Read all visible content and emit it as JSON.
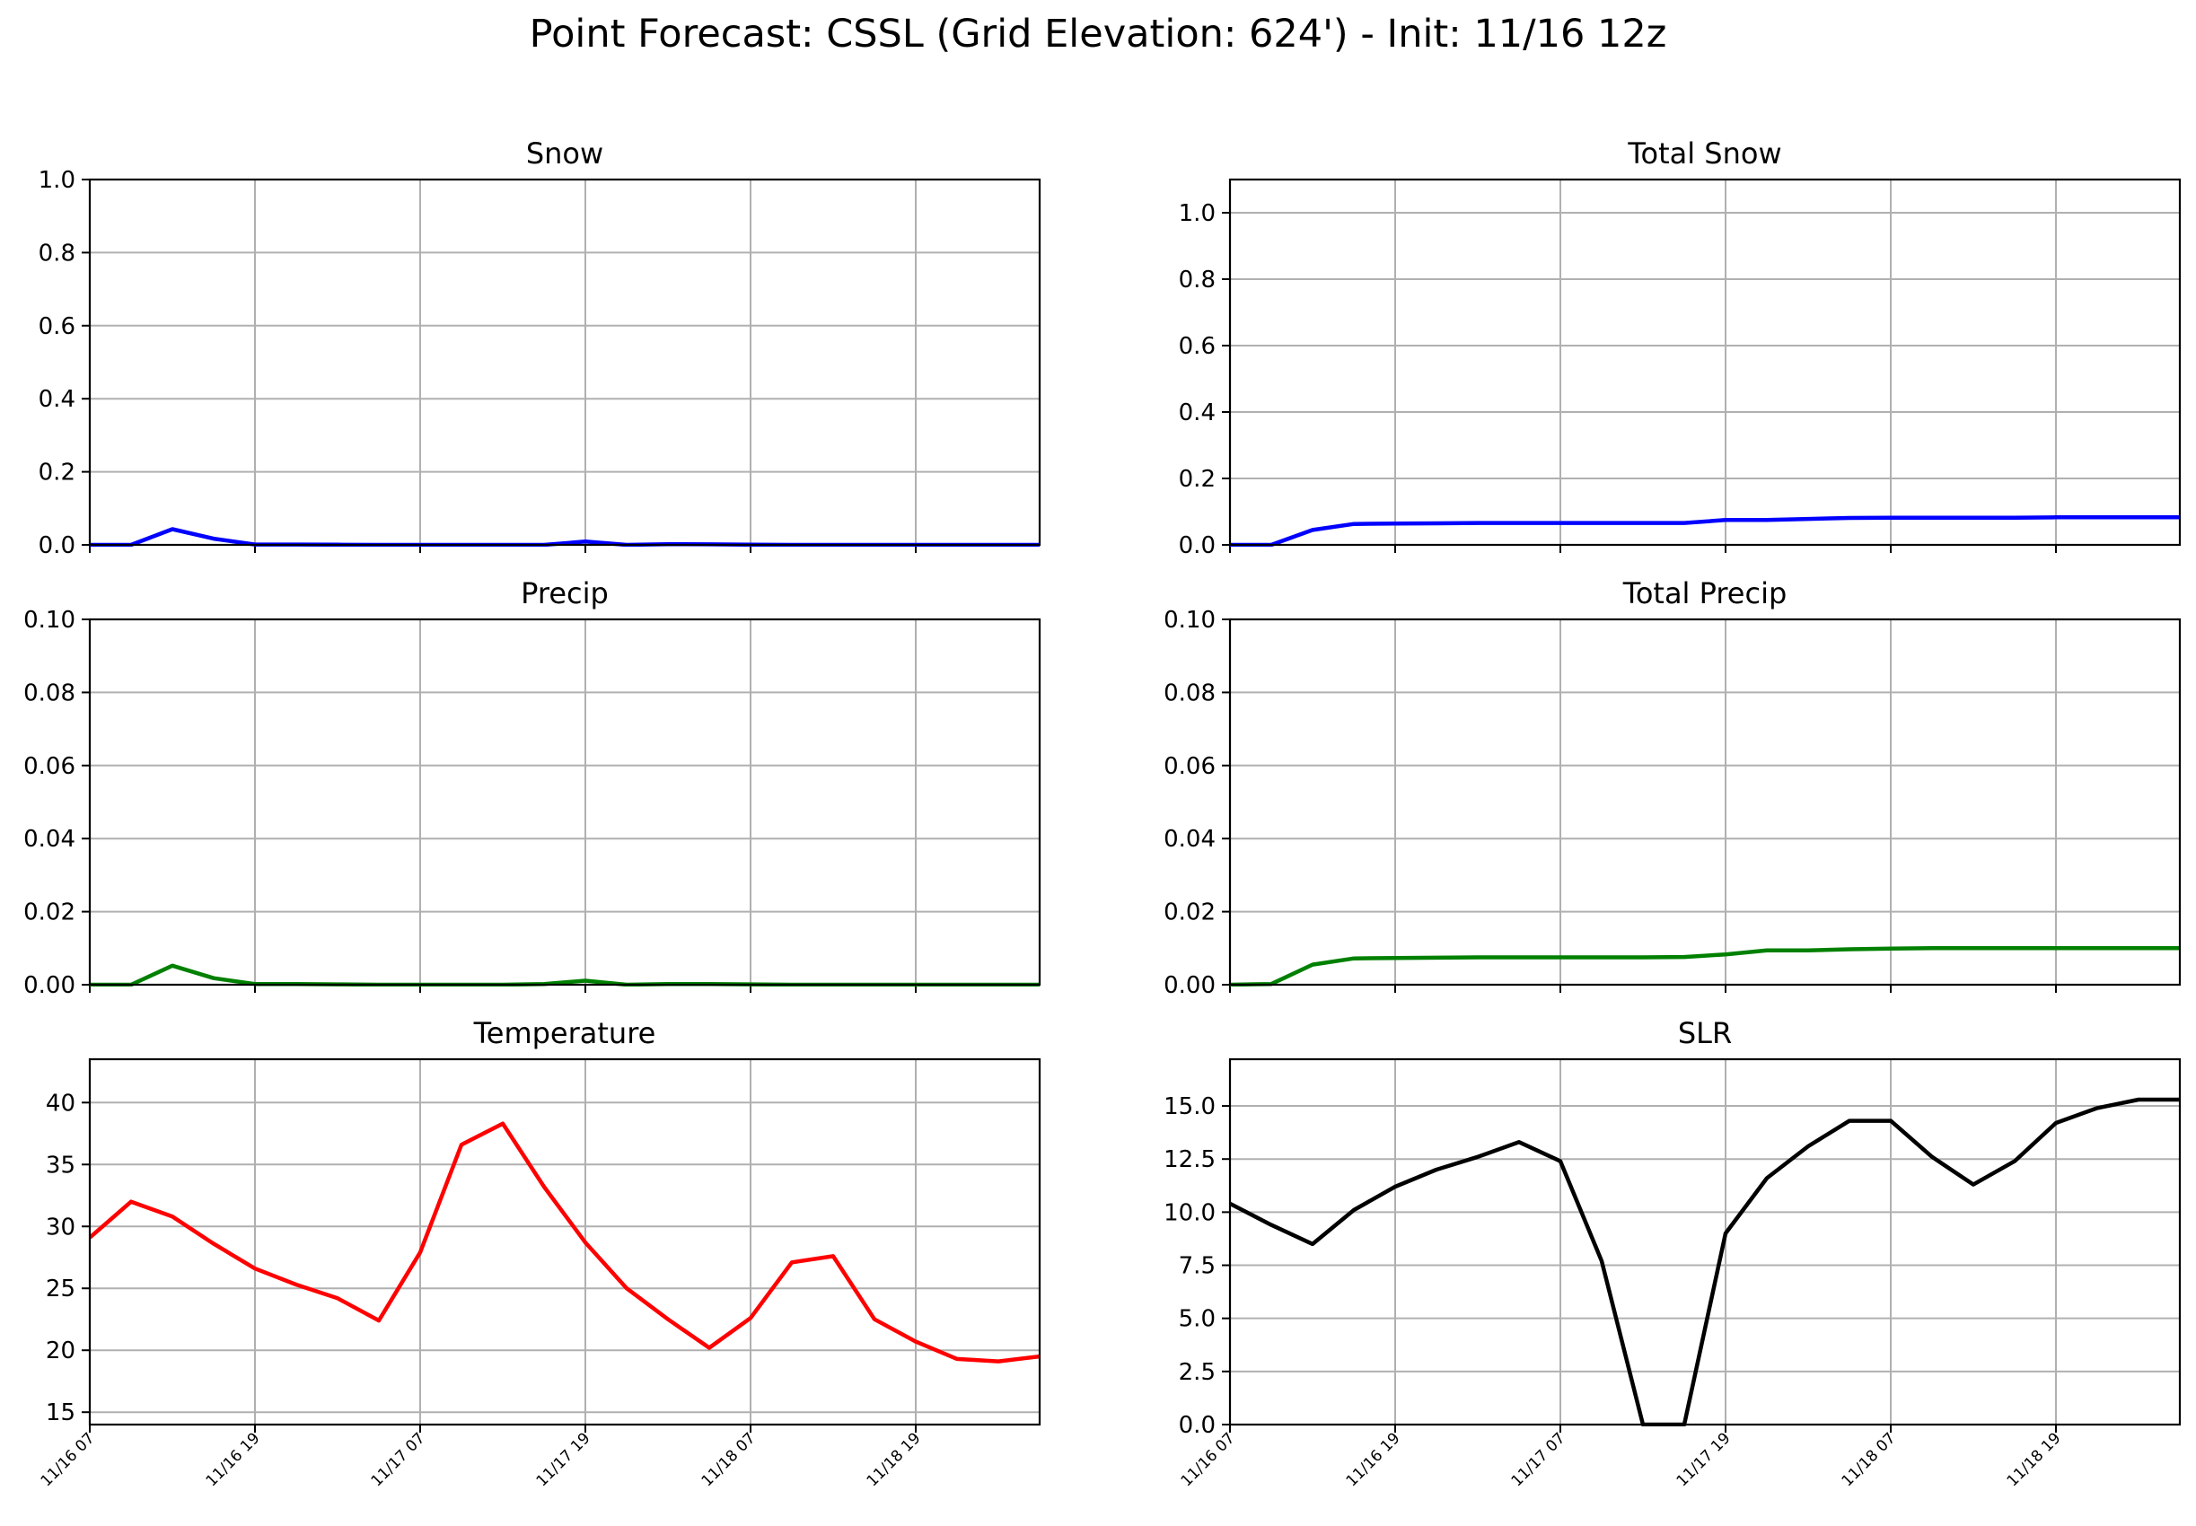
{
  "figure_title": "Point Forecast: CSSL (Grid Elevation: 624') - Init: 11/16 12z",
  "chart_data": [
    {
      "type": "line",
      "title": "Snow",
      "color": "#0000ff",
      "ylim": [
        0,
        1.0
      ],
      "yticks": [
        "0.0",
        "0.2",
        "0.4",
        "0.6",
        "0.8",
        "1.0"
      ],
      "ytick_values": [
        0,
        0.2,
        0.4,
        0.6,
        0.8,
        1.0
      ],
      "xlim": [
        0,
        69
      ],
      "xticks": [
        "11/16 07",
        "11/16 19",
        "11/17 07",
        "11/17 19",
        "11/18 07",
        "11/18 19"
      ],
      "xtick_positions": [
        0,
        12,
        24,
        36,
        48,
        60
      ],
      "x": [
        0,
        3,
        6,
        9,
        12,
        15,
        18,
        21,
        24,
        27,
        30,
        33,
        36,
        39,
        42,
        45,
        48,
        51,
        54,
        57,
        60,
        63,
        66,
        69
      ],
      "y": [
        0,
        0,
        0.043,
        0.017,
        0.001,
        0.001,
        0.0005,
        0,
        0,
        0,
        0,
        0,
        0.009,
        0,
        0.002,
        0.0015,
        0.0005,
        0,
        0,
        0,
        0,
        0,
        0,
        0
      ]
    },
    {
      "type": "line",
      "title": "Total Snow",
      "color": "#0000ff",
      "ylim": [
        0,
        1.1
      ],
      "yticks": [
        "0.0",
        "0.2",
        "0.4",
        "0.6",
        "0.8",
        "1.0"
      ],
      "ytick_values": [
        0,
        0.2,
        0.4,
        0.6,
        0.8,
        1.0
      ],
      "xlim": [
        0,
        69
      ],
      "xticks": [
        "11/16 07",
        "11/16 19",
        "11/17 07",
        "11/17 19",
        "11/18 07",
        "11/18 19"
      ],
      "xtick_positions": [
        0,
        12,
        24,
        36,
        48,
        60
      ],
      "x": [
        0,
        3,
        6,
        9,
        12,
        15,
        18,
        21,
        24,
        27,
        30,
        33,
        36,
        39,
        42,
        45,
        48,
        51,
        54,
        57,
        60,
        63,
        66,
        69
      ],
      "y": [
        0,
        0,
        0.045,
        0.063,
        0.064,
        0.065,
        0.066,
        0.066,
        0.066,
        0.066,
        0.066,
        0.066,
        0.075,
        0.075,
        0.078,
        0.081,
        0.082,
        0.082,
        0.082,
        0.082,
        0.083,
        0.083,
        0.083,
        0.083
      ]
    },
    {
      "type": "line",
      "title": "Precip",
      "color": "#008000",
      "ylim": [
        0,
        0.1
      ],
      "yticks": [
        "0.00",
        "0.02",
        "0.04",
        "0.06",
        "0.08",
        "0.10"
      ],
      "ytick_values": [
        0,
        0.02,
        0.04,
        0.06,
        0.08,
        0.1
      ],
      "xlim": [
        0,
        69
      ],
      "xticks": [
        "11/16 07",
        "11/16 19",
        "11/17 07",
        "11/17 19",
        "11/18 07",
        "11/18 19"
      ],
      "xtick_positions": [
        0,
        12,
        24,
        36,
        48,
        60
      ],
      "x": [
        0,
        3,
        6,
        9,
        12,
        15,
        18,
        21,
        24,
        27,
        30,
        33,
        36,
        39,
        42,
        45,
        48,
        51,
        54,
        57,
        60,
        63,
        66,
        69
      ],
      "y": [
        0,
        0,
        0.0052,
        0.0018,
        0.0002,
        0.0002,
        0.0001,
        0,
        0,
        0,
        0,
        0.0002,
        0.0011,
        0,
        0.0002,
        0.0002,
        0.0001,
        0,
        0,
        0,
        0,
        0,
        0,
        0
      ]
    },
    {
      "type": "line",
      "title": "Total Precip",
      "color": "#008000",
      "ylim": [
        0,
        0.1
      ],
      "yticks": [
        "0.00",
        "0.02",
        "0.04",
        "0.06",
        "0.08",
        "0.10"
      ],
      "ytick_values": [
        0,
        0.02,
        0.04,
        0.06,
        0.08,
        0.1
      ],
      "xlim": [
        0,
        69
      ],
      "xticks": [
        "11/16 07",
        "11/16 19",
        "11/17 07",
        "11/17 19",
        "11/18 07",
        "11/18 19"
      ],
      "xtick_positions": [
        0,
        12,
        24,
        36,
        48,
        60
      ],
      "x": [
        0,
        3,
        6,
        9,
        12,
        15,
        18,
        21,
        24,
        27,
        30,
        33,
        36,
        39,
        42,
        45,
        48,
        51,
        54,
        57,
        60,
        63,
        66,
        69
      ],
      "y": [
        0,
        0.0002,
        0.0055,
        0.0072,
        0.0073,
        0.0074,
        0.0075,
        0.0075,
        0.0075,
        0.0075,
        0.0075,
        0.0076,
        0.0083,
        0.0094,
        0.0094,
        0.0097,
        0.0099,
        0.01,
        0.01,
        0.01,
        0.01,
        0.01,
        0.01,
        0.01
      ]
    },
    {
      "type": "line",
      "title": "Temperature",
      "color": "#ff0000",
      "ylim": [
        14,
        43.5
      ],
      "yticks": [
        "15",
        "20",
        "25",
        "30",
        "35",
        "40"
      ],
      "ytick_values": [
        15,
        20,
        25,
        30,
        35,
        40
      ],
      "xlim": [
        0,
        69
      ],
      "xticks": [
        "11/16 07",
        "11/16 19",
        "11/17 07",
        "11/17 19",
        "11/18 07",
        "11/18 19"
      ],
      "xtick_positions": [
        0,
        12,
        24,
        36,
        48,
        60
      ],
      "x": [
        0,
        3,
        6,
        9,
        12,
        15,
        18,
        21,
        24,
        27,
        30,
        33,
        36,
        39,
        42,
        45,
        48,
        51,
        54,
        57,
        60,
        63,
        66,
        69
      ],
      "y": [
        29.1,
        32.0,
        30.8,
        28.6,
        26.6,
        25.3,
        24.2,
        22.4,
        27.9,
        36.6,
        38.3,
        33.2,
        28.7,
        25.0,
        22.5,
        20.2,
        22.6,
        27.1,
        27.6,
        22.5,
        20.7,
        19.3,
        19.1,
        19.5
      ]
    },
    {
      "type": "line",
      "title": "SLR",
      "color": "#000000",
      "ylim": [
        0,
        17.2
      ],
      "yticks": [
        "0.0",
        "2.5",
        "5.0",
        "7.5",
        "10.0",
        "12.5",
        "15.0"
      ],
      "ytick_values": [
        0,
        2.5,
        5.0,
        7.5,
        10.0,
        12.5,
        15.0
      ],
      "xlim": [
        0,
        69
      ],
      "xticks": [
        "11/16 07",
        "11/16 19",
        "11/17 07",
        "11/17 19",
        "11/18 07",
        "11/18 19"
      ],
      "xtick_positions": [
        0,
        12,
        24,
        36,
        48,
        60
      ],
      "x": [
        0,
        3,
        6,
        9,
        12,
        15,
        18,
        21,
        24,
        27,
        30,
        33,
        36,
        39,
        42,
        45,
        48,
        51,
        54,
        57,
        60,
        63,
        66,
        69
      ],
      "y": [
        10.4,
        9.4,
        8.5,
        10.1,
        11.2,
        12.0,
        12.6,
        13.3,
        12.4,
        7.7,
        0.0,
        0.0,
        9.0,
        11.6,
        13.1,
        14.3,
        14.3,
        12.6,
        11.3,
        12.4,
        14.2,
        14.9,
        15.3,
        15.3
      ]
    }
  ]
}
